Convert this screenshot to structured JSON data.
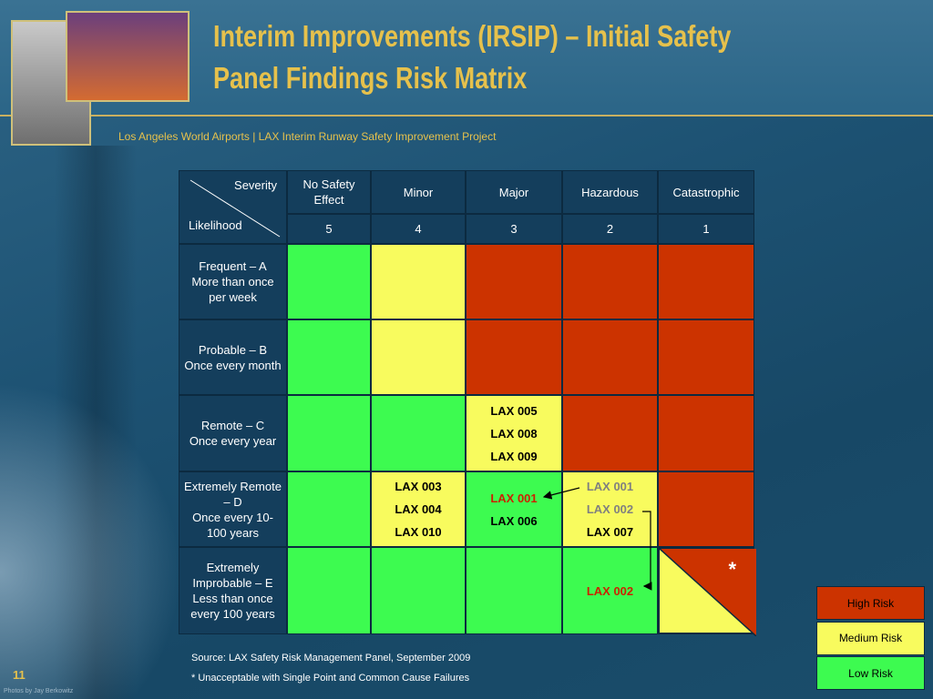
{
  "header": {
    "title_lines": [
      "Interim Improvements (IRSIP) – Initial Safety",
      "Panel Findings Risk Matrix"
    ],
    "subtitle": "Los Angeles World Airports | LAX Interim Runway Safety Improvement Project"
  },
  "matrix": {
    "severity_label": "Severity",
    "likelihood_label": "Likelihood",
    "columns": [
      {
        "name": "No Safety Effect",
        "rank": "5"
      },
      {
        "name": "Minor",
        "rank": "4"
      },
      {
        "name": "Major",
        "rank": "3"
      },
      {
        "name": "Hazardous",
        "rank": "2"
      },
      {
        "name": "Catastrophic",
        "rank": "1"
      }
    ],
    "rows": [
      {
        "label": [
          "Frequent – A",
          "More than once per week"
        ],
        "cells": [
          {
            "color": "#3dfb50"
          },
          {
            "color": "#f8fb5e"
          },
          {
            "color": "#cc3300"
          },
          {
            "color": "#cc3300"
          },
          {
            "color": "#cc3300"
          }
        ]
      },
      {
        "label": [
          "Probable – B",
          "Once every month"
        ],
        "cells": [
          {
            "color": "#3dfb50"
          },
          {
            "color": "#f8fb5e"
          },
          {
            "color": "#cc3300"
          },
          {
            "color": "#cc3300"
          },
          {
            "color": "#cc3300"
          }
        ]
      },
      {
        "label": [
          "Remote – C",
          "Once every year"
        ],
        "cells": [
          {
            "color": "#3dfb50"
          },
          {
            "color": "#3dfb50"
          },
          {
            "color": "#f8fb5e",
            "items": [
              {
                "text": "LAX 005",
                "color": "#000000"
              },
              {
                "text": "LAX 008",
                "color": "#000000"
              },
              {
                "text": "LAX 009",
                "color": "#000000"
              }
            ]
          },
          {
            "color": "#cc3300"
          },
          {
            "color": "#cc3300"
          }
        ]
      },
      {
        "label": [
          "Extremely Remote – D",
          "Once every 10-100 years"
        ],
        "cells": [
          {
            "color": "#3dfb50"
          },
          {
            "color": "#f8fb5e",
            "items": [
              {
                "text": "LAX 003",
                "color": "#000000"
              },
              {
                "text": "LAX 004",
                "color": "#000000"
              },
              {
                "text": "LAX 010",
                "color": "#000000"
              }
            ]
          },
          {
            "color": "#3dfb50",
            "items": [
              {
                "text": "LAX 001",
                "color": "#cc2200"
              },
              {
                "text": "LAX 006",
                "color": "#000000"
              }
            ]
          },
          {
            "color": "#f8fb5e",
            "items": [
              {
                "text": "LAX 001",
                "color": "#808080"
              },
              {
                "text": "LAX 002",
                "color": "#808080"
              },
              {
                "text": "LAX 007",
                "color": "#000000"
              }
            ]
          },
          {
            "color": "#cc3300"
          }
        ]
      },
      {
        "label": [
          "Extremely Improbable – E",
          "Less than once every 100 years"
        ],
        "cells": [
          {
            "color": "#3dfb50"
          },
          {
            "color": "#3dfb50"
          },
          {
            "color": "#3dfb50"
          },
          {
            "color": "#3dfb50",
            "items": [
              {
                "text": "LAX 002",
                "color": "#cc2200"
              }
            ]
          },
          {
            "color": "#f8fb5e",
            "color2": "#cc3300",
            "note": "*"
          }
        ]
      }
    ]
  },
  "legend": [
    {
      "label": "High Risk",
      "color": "#cc3300"
    },
    {
      "label": "Medium Risk",
      "color": "#f8fb5e"
    },
    {
      "label": "Low Risk",
      "color": "#3dfb50"
    }
  ],
  "footnotes": {
    "source": "Source: LAX Safety Risk Management Panel, September 2009",
    "note": "* Unacceptable with Single Point and Common Cause Failures"
  },
  "page_number": "11",
  "credit": "Photos by Jay Berkowitz"
}
